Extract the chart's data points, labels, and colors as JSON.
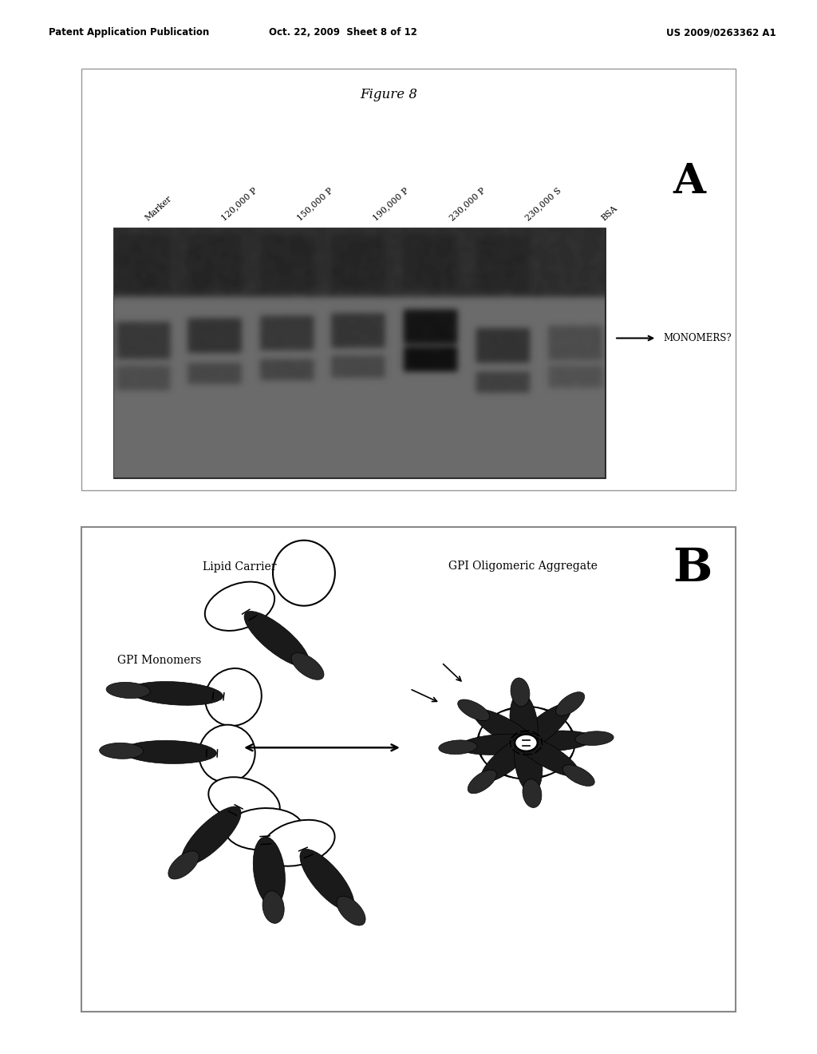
{
  "page_header_left": "Patent Application Publication",
  "page_header_center": "Oct. 22, 2009  Sheet 8 of 12",
  "page_header_right": "US 2009/0263362 A1",
  "figure_title": "Figure 8",
  "panel_a_label": "A",
  "panel_b_label": "B",
  "gel_lanes": [
    "Marker",
    "120,000 P",
    "150,000 P",
    "190,000 P",
    "230,000 P",
    "230,000 S",
    "BSA"
  ],
  "monomers_label": "MONOMERS?",
  "lipid_carrier_label": "Lipid Carrier",
  "gpi_monomers_label": "GPI Monomers",
  "gpi_aggregate_label": "GPI Oligomeric Aggregate",
  "page_bg": "#ffffff",
  "panel_a_bg": "#e8e6e3",
  "panel_b_bg": "#e8e6e3",
  "gel_bg_color": "#7a7a7a"
}
